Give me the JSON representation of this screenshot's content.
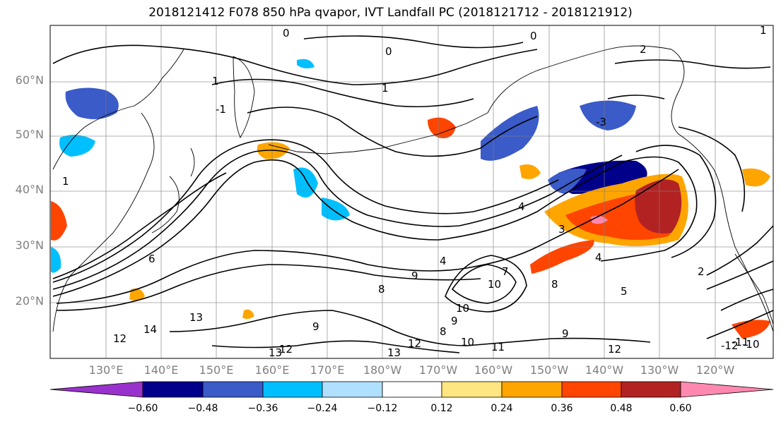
{
  "title": "2018121412 F078 850 hPa qvapor, IVT Landfall PC (2018121712 - 2018121912)",
  "latitude_labels": [
    "60°N",
    "50°N",
    "40°N",
    "30°N",
    "20°N"
  ],
  "longitude_labels": [
    "130°E",
    "140°E",
    "150°E",
    "160°E",
    "170°E",
    "180°W",
    "170°W",
    "160°W",
    "150°W",
    "140°W",
    "130°W",
    "120°W"
  ],
  "colorbar": {
    "colors": [
      "#9932cc",
      "#00008b",
      "#3a5bc8",
      "#00bfff",
      "#b0e0ff",
      "#ffffff",
      "#ffe680",
      "#ffa500",
      "#ff4500",
      "#b22222",
      "#ff88b0"
    ],
    "tick_labels": [
      "−0.60",
      "−0.48",
      "−0.36",
      "−0.24",
      "−0.12",
      "0.12",
      "0.24",
      "0.36",
      "0.48",
      "0.60"
    ]
  },
  "contour_labels": [
    "0",
    "0",
    "0",
    "2",
    "1",
    "1",
    "1",
    "-3",
    "-1",
    "1",
    "2",
    "3",
    "4",
    "4",
    "4",
    "5",
    "6",
    "7",
    "8",
    "8",
    "8",
    "9",
    "9",
    "9",
    "9",
    "10",
    "10",
    "10",
    "11",
    "12",
    "12",
    "12",
    "12",
    "13",
    "13",
    "13",
    "14",
    "-12",
    "-11",
    "-10"
  ],
  "contour_label_colors": {
    "line": "#000000"
  }
}
